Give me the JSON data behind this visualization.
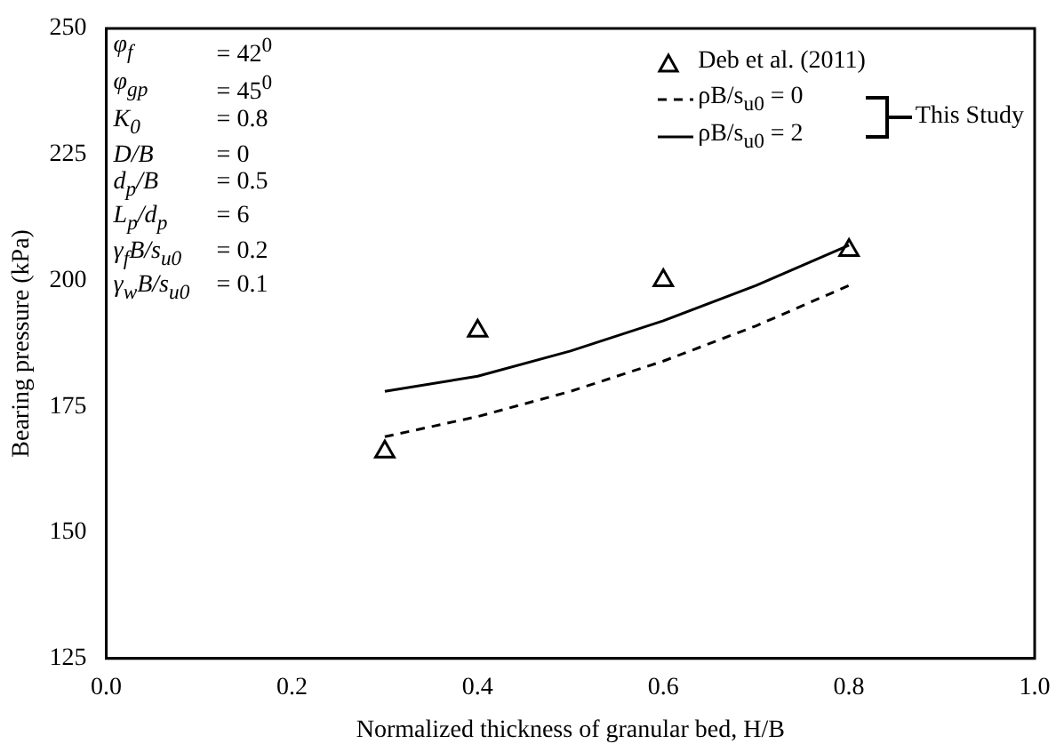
{
  "chart_data": {
    "type": "line",
    "xlabel": "Normalized thickness of granular bed, H/B",
    "ylabel": "Bearing pressure (kPa)",
    "xlim": [
      0,
      1
    ],
    "xticks": [
      {
        "value": 0,
        "label": "0.0"
      },
      0.2,
      0.4,
      0.6,
      0.8,
      {
        "value": 1,
        "label": "1.0"
      }
    ],
    "ylim": [
      125,
      250
    ],
    "yticks": [
      125,
      150,
      175,
      200,
      225,
      250
    ],
    "grid": false,
    "legend": "top right",
    "series": [
      {
        "name": "Deb et al. (2011)",
        "type": "scatter",
        "marker": "triangle",
        "color": "#000000",
        "x": [
          0.3,
          0.4,
          0.6,
          0.8
        ],
        "values": [
          166,
          190,
          200,
          206
        ]
      },
      {
        "name": "ρB/s$_{u0}$ = 0",
        "line_style": "dashed",
        "marker": "none",
        "color": "#000000",
        "x": [
          0.3,
          0.4,
          0.5,
          0.6,
          0.7,
          0.8
        ],
        "values": [
          169,
          173,
          178,
          184,
          191,
          199
        ]
      },
      {
        "name": "ρB/s$_{u0}$ = 2",
        "line_style": "solid",
        "marker": "none",
        "color": "#000000",
        "x": [
          0.3,
          0.4,
          0.5,
          0.6,
          0.7,
          0.8
        ],
        "values": [
          178,
          181,
          186,
          192,
          199,
          207
        ]
      }
    ],
    "annotations": [
      "This Study",
      "φ$_{f}$ = 42$^{0}$",
      "φ$_{gp}$ = 45$^{0}$",
      "K$_{0}$ = 0.8",
      "D/B = 0",
      "d$_{p}$/B = 0.5",
      "L$_{p}$/d$_{p}$ = 6",
      "γ$_{f}$B/s$_{u0}$ = 0.2",
      "γ$_{w}$B/s$_{u0}$ = 0.1"
    ]
  }
}
